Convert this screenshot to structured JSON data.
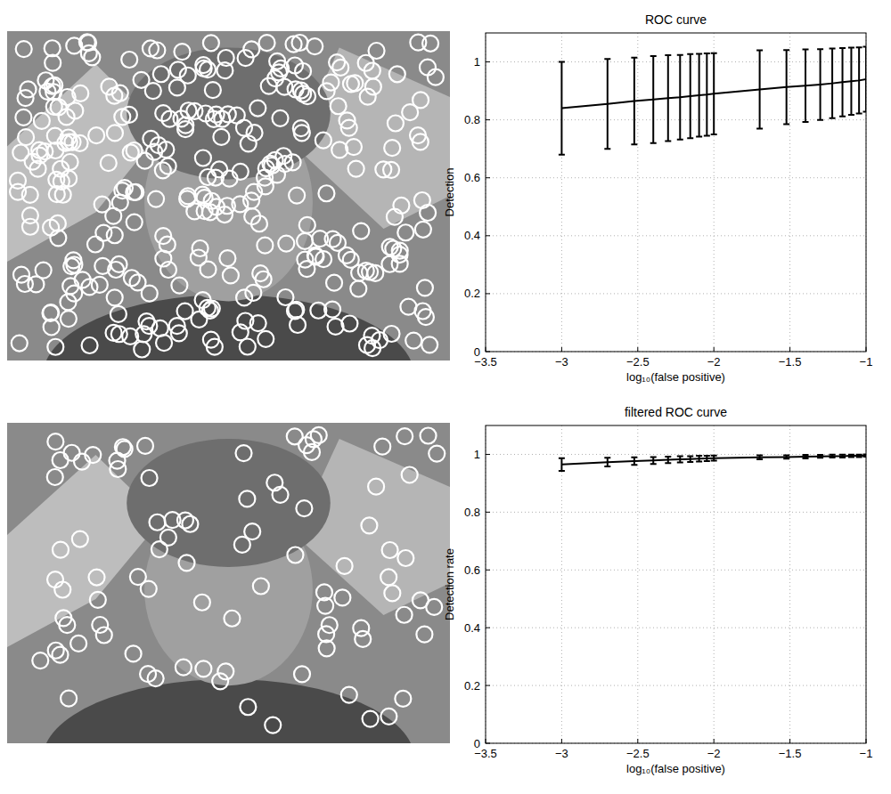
{
  "chart_data": [
    {
      "type": "line",
      "title": "ROC curve",
      "x_label": "log₁₀(false positive)",
      "y_label": "Detection",
      "x": [
        -3,
        -2.699,
        -2.523,
        -2.398,
        -2.301,
        -2.222,
        -2.155,
        -2.097,
        -2.046,
        -2,
        -1.699,
        -1.523,
        -1.398,
        -1.301,
        -1.222,
        -1.155,
        -1.097,
        -1.046,
        -1
      ],
      "series": [
        {
          "color": "#000000",
          "values": [
            0.84,
            0.855,
            0.865,
            0.87,
            0.875,
            0.878,
            0.882,
            0.885,
            0.887,
            0.89,
            0.905,
            0.913,
            0.918,
            0.922,
            0.926,
            0.93,
            0.933,
            0.936,
            0.94
          ],
          "errors": [
            0.16,
            0.155,
            0.15,
            0.15,
            0.148,
            0.146,
            0.145,
            0.143,
            0.142,
            0.14,
            0.135,
            0.128,
            0.125,
            0.122,
            0.12,
            0.118,
            0.116,
            0.114,
            0.112
          ]
        }
      ],
      "xlim": [
        -3.5,
        -1
      ],
      "ylim": [
        0,
        1.1
      ],
      "xticks": [
        -3.5,
        -3,
        -2.5,
        -2,
        -1.5,
        -1
      ],
      "yticks": [
        0,
        0.2,
        0.4,
        0.6,
        0.8,
        1
      ],
      "grid": true
    },
    {
      "type": "line",
      "title": "filtered ROC curve",
      "x_label": "log₁₀(false positive)",
      "y_label": "Detection rate",
      "x": [
        -3,
        -2.699,
        -2.523,
        -2.398,
        -2.301,
        -2.222,
        -2.155,
        -2.097,
        -2.046,
        -2,
        -1.699,
        -1.523,
        -1.398,
        -1.301,
        -1.222,
        -1.155,
        -1.097,
        -1.046,
        -1
      ],
      "series": [
        {
          "color": "#000000",
          "values": [
            0.965,
            0.973,
            0.977,
            0.979,
            0.981,
            0.983,
            0.984,
            0.985,
            0.986,
            0.987,
            0.99,
            0.991,
            0.992,
            0.993,
            0.994,
            0.994,
            0.995,
            0.995,
            0.996
          ],
          "errors": [
            0.022,
            0.015,
            0.013,
            0.012,
            0.011,
            0.011,
            0.01,
            0.01,
            0.009,
            0.009,
            0.007,
            0.006,
            0.006,
            0.005,
            0.005,
            0.005,
            0.004,
            0.004,
            0.004
          ]
        }
      ],
      "xlim": [
        -3.5,
        -1
      ],
      "ylim": [
        0,
        1.1
      ],
      "xticks": [
        -3.5,
        -3,
        -2.5,
        -2,
        -1.5,
        -1
      ],
      "yticks": [
        0,
        0.2,
        0.4,
        0.6,
        0.8,
        1
      ],
      "grid": true
    }
  ]
}
